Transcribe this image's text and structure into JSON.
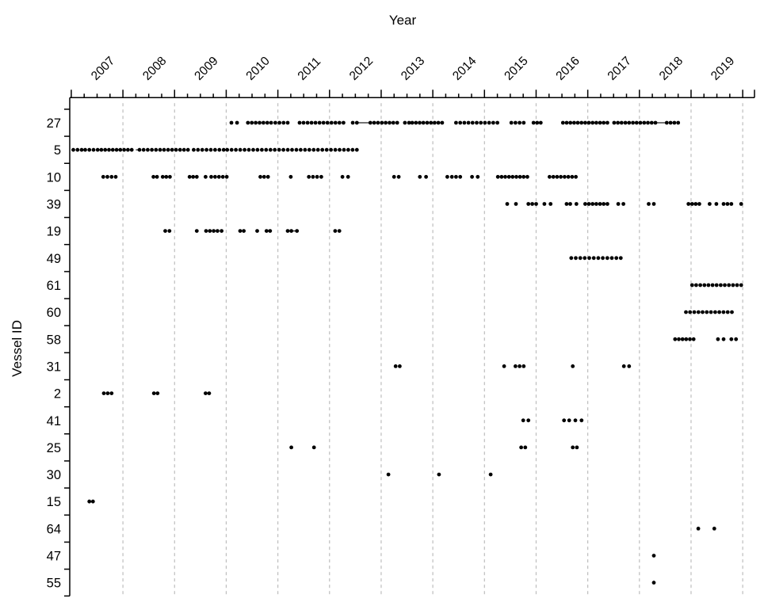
{
  "title": "Year",
  "y_axis_label": "Vessel ID",
  "chart_data": {
    "type": "scatter",
    "title": "Year",
    "xlabel": "Year",
    "ylabel": "Vessel ID",
    "legend": "none",
    "grid": "vertical dashed gridline at each labeled year",
    "x_tick_labels": [
      "2007",
      "2008",
      "2009",
      "2010",
      "2011",
      "2012",
      "2013",
      "2014",
      "2015",
      "2016",
      "2017",
      "2018",
      "2019"
    ],
    "x_major_tick_years": [
      2006,
      2007,
      2008,
      2009,
      2010,
      2011,
      2012,
      2013,
      2014,
      2015,
      2016,
      2017,
      2018,
      2019
    ],
    "x_minor_tick_step_years": 0.25,
    "xlim": [
      2005.97,
      2019.23
    ],
    "categories": [
      "27",
      "5",
      "10",
      "39",
      "19",
      "49",
      "61",
      "60",
      "58",
      "31",
      "2",
      "41",
      "25",
      "30",
      "15",
      "64",
      "47",
      "55"
    ],
    "colors": {
      "dot": "#000000",
      "grid": "#bdbdbd",
      "axis": "#000000",
      "text": "#000000",
      "background": "#ffffff"
    },
    "runs_format": "[start_year, end_year, n_dots] — n_dots spaced evenly from start to end",
    "series": [
      {
        "vessel": "27",
        "runs": [
          [
            2009.1,
            2009.21,
            2
          ],
          [
            2009.42,
            2009.87,
            7
          ],
          [
            2009.95,
            2010.19,
            4
          ],
          [
            2010.42,
            2011.27,
            12
          ],
          [
            2011.45,
            2011.53,
            2
          ],
          [
            2011.79,
            2012.31,
            8
          ],
          [
            2012.46,
            2012.54,
            2
          ],
          [
            2012.6,
            2013.18,
            9
          ],
          [
            2013.45,
            2014.25,
            11
          ],
          [
            2014.52,
            2014.76,
            4
          ],
          [
            2014.95,
            2015.09,
            3
          ],
          [
            2015.52,
            2016.38,
            13
          ],
          [
            2016.51,
            2017.31,
            12
          ],
          [
            2017.53,
            2017.75,
            4
          ]
        ],
        "connectors": [
          [
            2011.56,
            2011.78
          ],
          [
            2017.33,
            2017.52
          ]
        ]
      },
      {
        "vessel": "5",
        "runs": [
          [
            2006.04,
            2006.2,
            3
          ],
          [
            2006.27,
            2006.43,
            3
          ],
          [
            2006.51,
            2007.17,
            10
          ],
          [
            2007.32,
            2007.64,
            5
          ],
          [
            2007.72,
            2008.26,
            8
          ],
          [
            2008.37,
            2008.95,
            8
          ],
          [
            2009.02,
            2011.53,
            31
          ]
        ],
        "connectors": [
          [
            2007.25,
            2007.33
          ]
        ]
      },
      {
        "vessel": "10",
        "runs": [
          [
            2006.62,
            2006.86,
            4
          ],
          [
            2007.59,
            2007.66,
            2
          ],
          [
            2007.77,
            2007.91,
            3
          ],
          [
            2008.29,
            2008.43,
            3
          ],
          [
            2008.6,
            2008.6,
            1
          ],
          [
            2008.71,
            2009.01,
            5
          ],
          [
            2009.66,
            2009.81,
            3
          ],
          [
            2010.25,
            2010.25,
            1
          ],
          [
            2010.6,
            2010.84,
            4
          ],
          [
            2011.25,
            2011.36,
            2
          ],
          [
            2012.25,
            2012.34,
            2
          ],
          [
            2012.75,
            2012.87,
            2
          ],
          [
            2013.28,
            2013.37,
            2
          ],
          [
            2013.45,
            2013.53,
            2
          ],
          [
            2013.76,
            2013.87,
            2
          ],
          [
            2014.26,
            2014.83,
            9
          ],
          [
            2015.26,
            2015.77,
            8
          ]
        ],
        "connectors": []
      },
      {
        "vessel": "39",
        "runs": [
          [
            2014.44,
            2014.44,
            1
          ],
          [
            2014.61,
            2014.61,
            1
          ],
          [
            2014.85,
            2015.0,
            3
          ],
          [
            2015.16,
            2015.28,
            2
          ],
          [
            2015.59,
            2015.66,
            2
          ],
          [
            2015.78,
            2015.78,
            1
          ],
          [
            2015.95,
            2016.38,
            7
          ],
          [
            2016.59,
            2016.69,
            2
          ],
          [
            2017.18,
            2017.28,
            2
          ],
          [
            2017.95,
            2018.16,
            4
          ],
          [
            2018.36,
            2018.49,
            2
          ],
          [
            2018.63,
            2018.78,
            3
          ],
          [
            2018.97,
            2018.97,
            1
          ]
        ],
        "connectors": []
      },
      {
        "vessel": "19",
        "runs": [
          [
            2007.82,
            2007.9,
            2
          ],
          [
            2008.43,
            2008.43,
            1
          ],
          [
            2008.61,
            2008.83,
            4
          ],
          [
            2008.91,
            2008.91,
            1
          ],
          [
            2009.27,
            2009.34,
            2
          ],
          [
            2009.6,
            2009.6,
            1
          ],
          [
            2009.78,
            2009.85,
            2
          ],
          [
            2010.19,
            2010.26,
            2
          ],
          [
            2010.37,
            2010.37,
            1
          ],
          [
            2011.11,
            2011.19,
            2
          ]
        ],
        "connectors": [
          [
            2010.27,
            2010.36
          ]
        ]
      },
      {
        "vessel": "49",
        "runs": [
          [
            2015.68,
            2016.64,
            12
          ]
        ],
        "connectors": []
      },
      {
        "vessel": "61",
        "runs": [
          [
            2018.02,
            2018.97,
            13
          ]
        ],
        "connectors": []
      },
      {
        "vessel": "60",
        "runs": [
          [
            2017.9,
            2018.79,
            12
          ]
        ],
        "connectors": []
      },
      {
        "vessel": "58",
        "runs": [
          [
            2017.69,
            2018.05,
            6
          ],
          [
            2018.52,
            2018.63,
            2
          ],
          [
            2018.78,
            2018.87,
            2
          ]
        ],
        "connectors": []
      },
      {
        "vessel": "31",
        "runs": [
          [
            2012.28,
            2012.36,
            2
          ],
          [
            2014.38,
            2014.38,
            1
          ],
          [
            2014.6,
            2014.76,
            3
          ],
          [
            2015.71,
            2015.71,
            1
          ],
          [
            2016.7,
            2016.8,
            2
          ]
        ],
        "connectors": []
      },
      {
        "vessel": "2",
        "runs": [
          [
            2006.63,
            2006.78,
            3
          ],
          [
            2007.6,
            2007.67,
            2
          ],
          [
            2008.6,
            2008.67,
            2
          ]
        ],
        "connectors": []
      },
      {
        "vessel": "41",
        "runs": [
          [
            2014.75,
            2014.85,
            2
          ],
          [
            2015.54,
            2015.64,
            2
          ],
          [
            2015.76,
            2015.88,
            2
          ]
        ],
        "connectors": []
      },
      {
        "vessel": "25",
        "runs": [
          [
            2010.26,
            2010.26,
            1
          ],
          [
            2010.7,
            2010.7,
            1
          ],
          [
            2014.71,
            2014.79,
            2
          ],
          [
            2015.71,
            2015.79,
            2
          ]
        ],
        "connectors": []
      },
      {
        "vessel": "30",
        "runs": [
          [
            2012.14,
            2012.14,
            1
          ],
          [
            2013.12,
            2013.12,
            1
          ],
          [
            2014.12,
            2014.12,
            1
          ]
        ],
        "connectors": []
      },
      {
        "vessel": "15",
        "runs": [
          [
            2006.35,
            2006.42,
            2
          ]
        ],
        "connectors": []
      },
      {
        "vessel": "64",
        "runs": [
          [
            2018.14,
            2018.14,
            1
          ],
          [
            2018.45,
            2018.45,
            1
          ]
        ],
        "connectors": []
      },
      {
        "vessel": "47",
        "runs": [
          [
            2017.28,
            2017.28,
            1
          ]
        ],
        "connectors": []
      },
      {
        "vessel": "55",
        "runs": [
          [
            2017.28,
            2017.28,
            1
          ]
        ],
        "connectors": []
      }
    ]
  }
}
